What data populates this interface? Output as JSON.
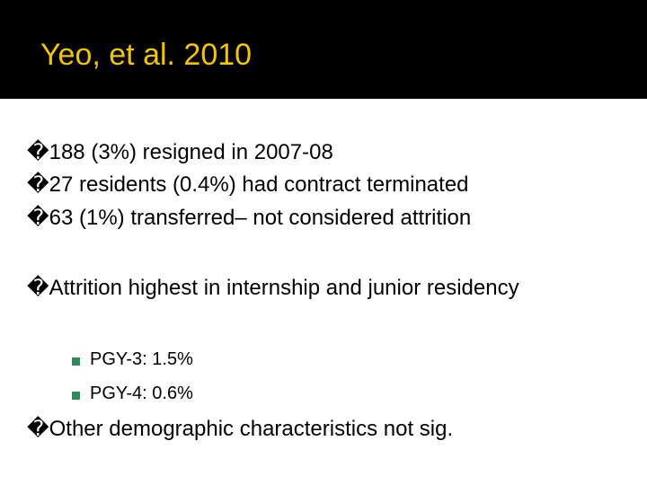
{
  "header": {
    "title": "Yeo, et al. 2010"
  },
  "bullets": [
    "�188 (3%) resigned in 2007-08",
    "�27 residents (0.4%) had contract terminated",
    "�63 (1%) transferred– not considered attrition",
    "�Attrition highest in internship and junior residency",
    "�Other demographic characteristics not sig."
  ],
  "sub_bullets": [
    "PGY-3: 1.5%",
    "PGY-4: 0.6%"
  ]
}
